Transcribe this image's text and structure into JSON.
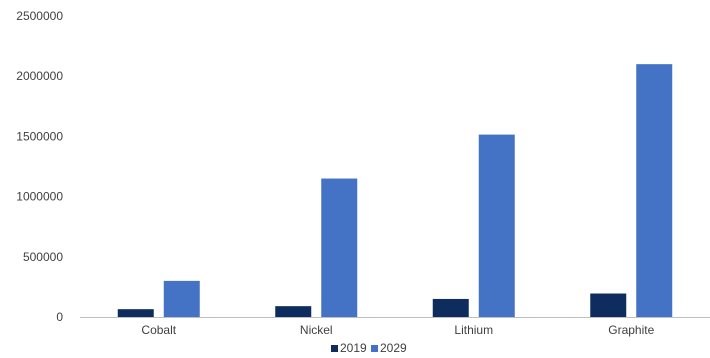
{
  "chart_data": {
    "type": "bar",
    "categories": [
      "Cobalt",
      "Nickel",
      "Lithium",
      "Graphite"
    ],
    "series": [
      {
        "name": "2019",
        "values": [
          65000,
          90000,
          150000,
          195000
        ],
        "color": "#0e2d5e"
      },
      {
        "name": "2029",
        "values": [
          300000,
          1150000,
          1515000,
          2100000
        ],
        "color": "#4472c4"
      }
    ],
    "y_ticks": [
      "0",
      "500000",
      "1000000",
      "1500000",
      "2000000",
      "2500000"
    ],
    "ylim": [
      0,
      2500000
    ],
    "grid": false,
    "legend_position": "bottom-center",
    "title": "",
    "xlabel": "",
    "ylabel": ""
  },
  "colors": {
    "axis": "#bfbfbf",
    "text": "#404040"
  }
}
